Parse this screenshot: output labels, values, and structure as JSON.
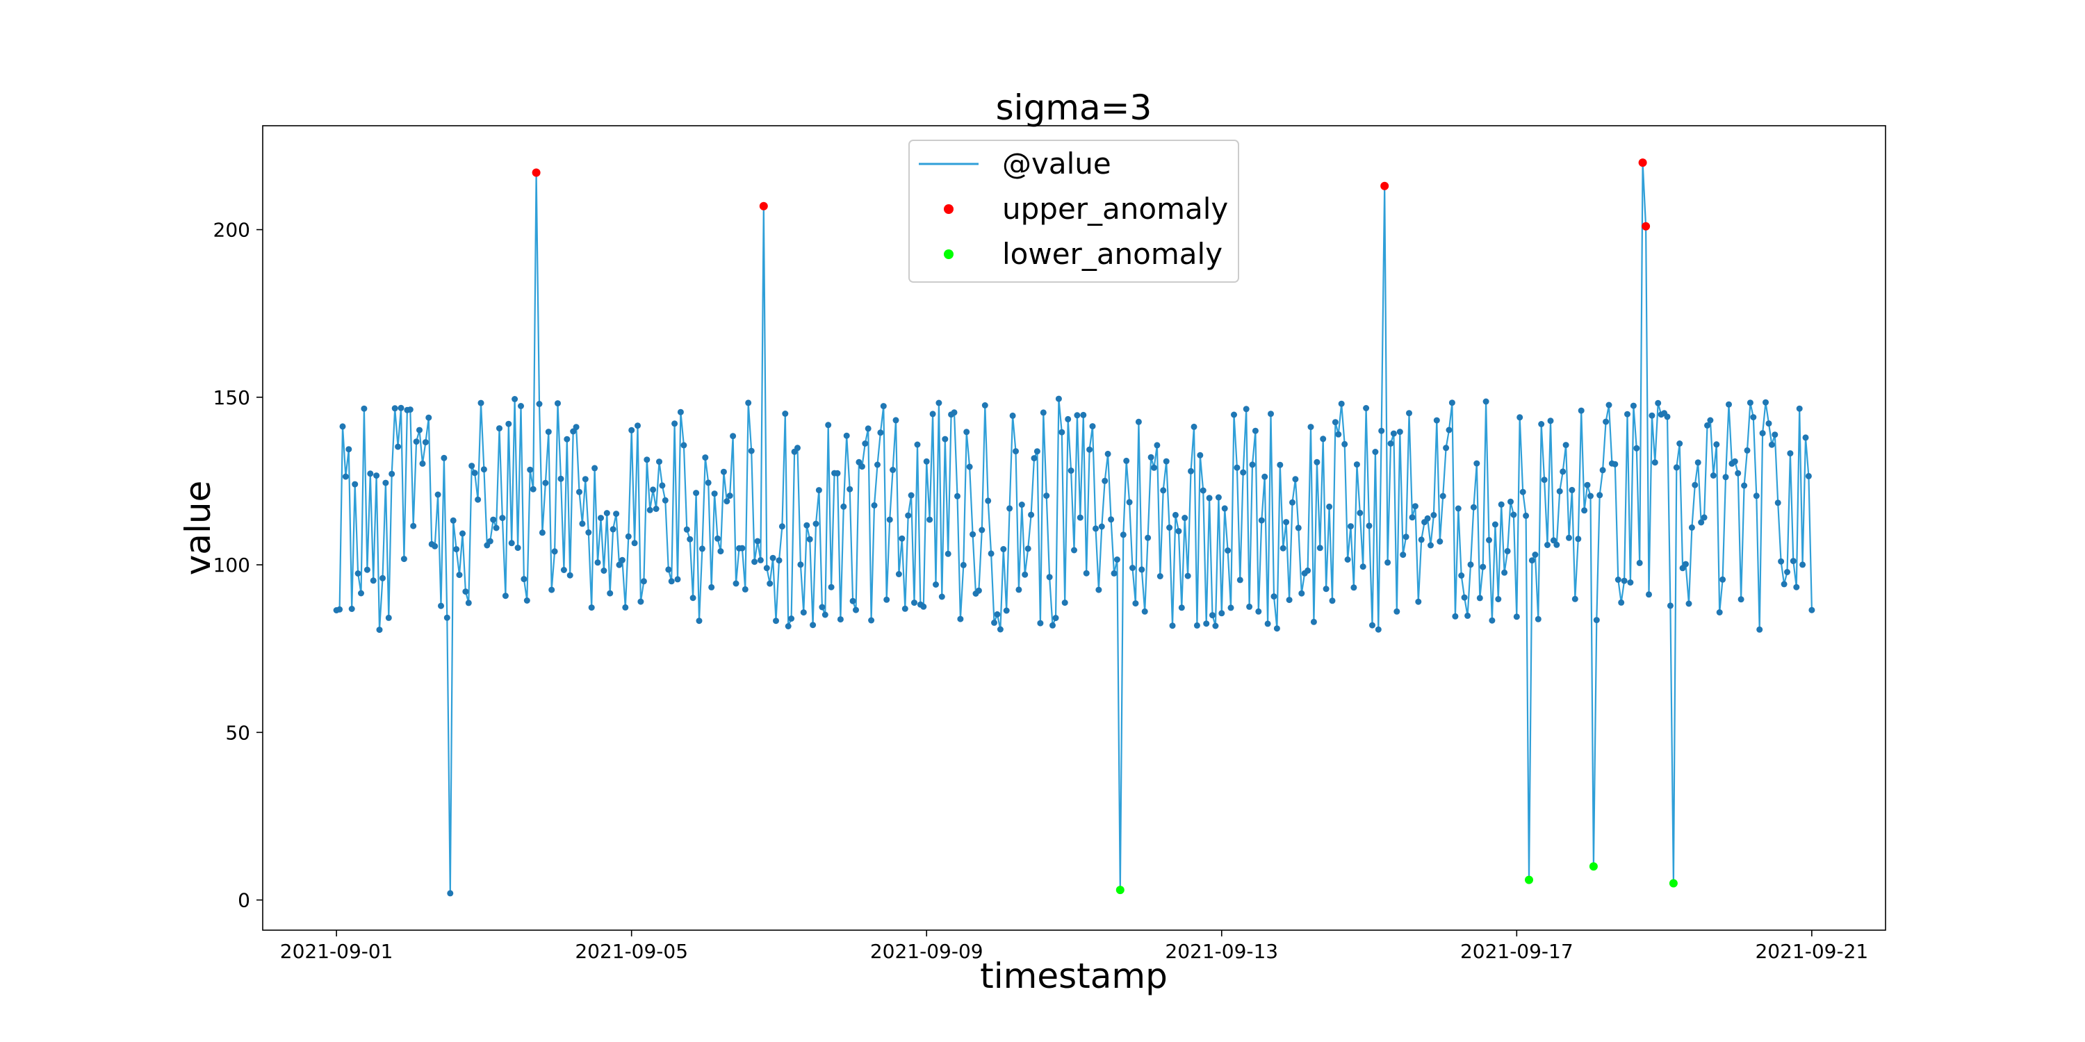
{
  "chart_data": {
    "type": "line",
    "title": "sigma=3",
    "xlabel": "timestamp",
    "ylabel": "value",
    "x_tick_labels": [
      "2021-09-01",
      "2021-09-05",
      "2021-09-09",
      "2021-09-13",
      "2021-09-17",
      "2021-09-21"
    ],
    "y_tick_labels": [
      "0",
      "50",
      "100",
      "150",
      "200"
    ],
    "x_range": [
      "2021-08-31T00:00",
      "2021-09-22T00:00"
    ],
    "ylim": [
      -9,
      231
    ],
    "grid": false,
    "legend": {
      "placement": "upper center",
      "entries": [
        {
          "label": "@value",
          "kind": "line",
          "color": "#2f9fd8"
        },
        {
          "label": "upper_anomaly",
          "kind": "marker",
          "color": "#ff0000"
        },
        {
          "label": "lower_anomaly",
          "kind": "marker",
          "color": "#00ff00"
        }
      ]
    },
    "series": [
      {
        "name": "@value",
        "color": "#2f9fd8",
        "marker_color": "#1f77b4",
        "start": "2021-09-01T00:00",
        "end": "2021-09-21T00:00",
        "interval_minutes": 60,
        "value_range": [
          80,
          150
        ],
        "spikes": [
          {
            "x": "2021-09-02T13:00",
            "y": 2
          },
          {
            "x": "2021-09-03T17:00",
            "y": 217
          },
          {
            "x": "2021-09-06T19:00",
            "y": 207
          },
          {
            "x": "2021-09-11T15:00",
            "y": 3
          },
          {
            "x": "2021-09-15T05:00",
            "y": 213
          },
          {
            "x": "2021-09-17T04:00",
            "y": 6
          },
          {
            "x": "2021-09-18T01:00",
            "y": 10
          },
          {
            "x": "2021-09-18T17:00",
            "y": 220
          },
          {
            "x": "2021-09-18T18:00",
            "y": 201
          },
          {
            "x": "2021-09-19T03:00",
            "y": 5
          }
        ]
      },
      {
        "name": "upper_anomaly",
        "color": "#ff0000",
        "points": [
          {
            "x": "2021-09-03T17:00",
            "y": 217
          },
          {
            "x": "2021-09-06T19:00",
            "y": 207
          },
          {
            "x": "2021-09-15T05:00",
            "y": 213
          },
          {
            "x": "2021-09-18T17:00",
            "y": 220
          },
          {
            "x": "2021-09-18T18:00",
            "y": 201
          }
        ]
      },
      {
        "name": "lower_anomaly",
        "color": "#00ff00",
        "points": [
          {
            "x": "2021-09-11T15:00",
            "y": 3
          },
          {
            "x": "2021-09-17T04:00",
            "y": 6
          },
          {
            "x": "2021-09-18T01:00",
            "y": 10
          },
          {
            "x": "2021-09-19T03:00",
            "y": 5
          }
        ]
      }
    ]
  }
}
